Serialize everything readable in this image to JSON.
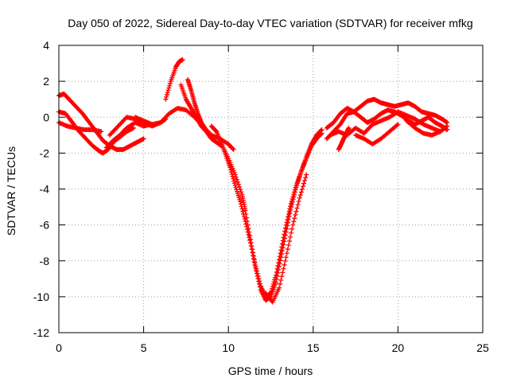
{
  "chart_data": {
    "type": "scatter",
    "title": "Day 050 of 2022, Sidereal Day-to-day VTEC variation (SDTVAR) for receiver mfkg",
    "xlabel": "GPS time / hours",
    "ylabel": "SDTVAR / TECUs",
    "xlim": [
      0,
      25
    ],
    "ylim": [
      -12,
      4
    ],
    "xticks": [
      0,
      5,
      10,
      15,
      20,
      25
    ],
    "yticks": [
      -12,
      -10,
      -8,
      -6,
      -4,
      -2,
      0,
      2,
      4
    ],
    "xtick_labels": [
      "0",
      "5",
      "10",
      "15",
      "20",
      "25"
    ],
    "ytick_labels": [
      "-12",
      "-10",
      "-8",
      "-6",
      "-4",
      "-2",
      "0",
      "2",
      "4"
    ],
    "grid": true,
    "marker": "+",
    "series": [
      {
        "name": "SDTVAR",
        "color": "#ff0000",
        "tracks": [
          {
            "x": [
              0.0,
              0.3,
              0.6,
              1.0,
              1.4,
              1.8,
              2.2,
              2.6,
              3.0,
              3.4,
              3.8,
              4.2,
              4.6,
              5.0
            ],
            "y": [
              1.2,
              1.3,
              1.0,
              0.6,
              0.2,
              -0.3,
              -0.8,
              -1.3,
              -1.6,
              -1.8,
              -1.8,
              -1.6,
              -1.4,
              -1.2
            ]
          },
          {
            "x": [
              0.0,
              0.4,
              0.8,
              1.2,
              1.6,
              2.0,
              2.4,
              2.6,
              2.9,
              3.2,
              3.6,
              4.0,
              4.4
            ],
            "y": [
              0.3,
              0.2,
              -0.3,
              -0.8,
              -1.2,
              -1.6,
              -1.9,
              -2.0,
              -1.8,
              -1.4,
              -1.1,
              -0.8,
              -0.6
            ]
          },
          {
            "x": [
              0.0,
              0.5,
              1.0,
              1.5,
              2.0,
              2.5
            ],
            "y": [
              -0.3,
              -0.5,
              -0.6,
              -0.7,
              -0.7,
              -0.8
            ]
          },
          {
            "x": [
              3.0,
              3.5,
              4.0,
              4.5,
              5.0,
              5.5,
              6.0,
              6.3
            ],
            "y": [
              -1.0,
              -0.5,
              0.0,
              -0.1,
              -0.3,
              -0.5,
              -0.3,
              -0.1
            ]
          },
          {
            "x": [
              2.8,
              3.2,
              3.6,
              4.0,
              4.5,
              5.0,
              5.4
            ],
            "y": [
              -1.7,
              -1.3,
              -1.0,
              -0.6,
              -0.3,
              -0.5,
              -0.4
            ]
          },
          {
            "x": [
              4.5,
              5.0,
              5.5,
              6.0,
              6.5,
              7.0,
              7.5,
              8.0,
              8.5,
              9.0,
              9.5,
              10.0,
              10.3
            ],
            "y": [
              0.0,
              -0.2,
              -0.4,
              -0.3,
              0.2,
              0.5,
              0.4,
              0.0,
              -0.5,
              -1.0,
              -1.2,
              -1.5,
              -1.8
            ]
          },
          {
            "x": [
              6.3,
              6.6,
              6.9,
              7.1,
              7.3
            ],
            "y": [
              1.0,
              2.0,
              2.8,
              3.1,
              3.2
            ]
          },
          {
            "x": [
              7.2,
              7.5,
              7.8,
              8.1,
              8.4,
              8.7,
              9.0,
              9.3,
              9.6
            ],
            "y": [
              1.8,
              1.0,
              0.5,
              0.0,
              -0.5,
              -0.8,
              -1.2,
              -1.4,
              -1.6
            ]
          },
          {
            "x": [
              7.6,
              7.8,
              8.0,
              8.2,
              8.4,
              8.6
            ],
            "y": [
              2.1,
              1.5,
              0.8,
              0.2,
              -0.3,
              -0.6
            ]
          },
          {
            "x": [
              9.0,
              9.3,
              9.6,
              10.0,
              10.4,
              10.8,
              11.0,
              11.3,
              11.6,
              11.9,
              12.2,
              12.5,
              12.8,
              13.1,
              13.4,
              13.7,
              14.0,
              14.3,
              14.6,
              14.9,
              15.2,
              15.5
            ],
            "y": [
              -0.5,
              -0.8,
              -1.5,
              -2.3,
              -3.2,
              -4.3,
              -5.2,
              -6.8,
              -8.3,
              -9.4,
              -10.0,
              -9.8,
              -8.8,
              -7.4,
              -6.0,
              -4.8,
              -3.8,
              -3.0,
              -2.2,
              -1.5,
              -1.0,
              -0.7
            ]
          },
          {
            "x": [
              9.5,
              9.8,
              10.1,
              10.4,
              10.7,
              11.0,
              11.3,
              11.6,
              11.9,
              12.2,
              12.5,
              12.8,
              13.1,
              13.4,
              13.7,
              14.0,
              14.3,
              14.6,
              14.9,
              15.2,
              15.5
            ],
            "y": [
              -1.2,
              -2.0,
              -2.8,
              -3.8,
              -4.7,
              -5.8,
              -7.0,
              -8.4,
              -9.6,
              -10.2,
              -10.0,
              -9.2,
              -7.8,
              -6.4,
              -5.0,
              -3.9,
              -3.0,
              -2.3,
              -1.6,
              -1.2,
              -0.9
            ]
          },
          {
            "x": [
              12.2,
              12.6,
              13.0,
              13.4,
              13.8,
              14.2,
              14.6
            ],
            "y": [
              -9.8,
              -10.3,
              -9.5,
              -7.8,
              -6.0,
              -4.5,
              -3.2
            ]
          },
          {
            "x": [
              15.8,
              16.2,
              16.6,
              17.0,
              17.4,
              17.8,
              18.2,
              18.6,
              19.0,
              19.4,
              19.8,
              20.2,
              20.6,
              21.0,
              21.4,
              21.8,
              22.2,
              22.6,
              22.9
            ],
            "y": [
              -1.2,
              -0.8,
              -0.4,
              0.2,
              0.3,
              0.6,
              0.9,
              1.0,
              0.8,
              0.7,
              0.6,
              0.7,
              0.8,
              0.6,
              0.3,
              0.2,
              0.1,
              -0.1,
              -0.3
            ]
          },
          {
            "x": [
              15.8,
              16.2,
              16.6,
              17.0,
              17.4,
              17.8,
              18.2,
              18.6,
              19.0,
              19.4,
              19.8,
              20.2,
              20.6,
              21.0,
              21.4,
              21.8,
              22.2,
              22.6,
              22.9
            ],
            "y": [
              -0.6,
              -0.3,
              0.2,
              0.5,
              0.3,
              0.0,
              -0.3,
              -0.1,
              0.2,
              0.4,
              0.3,
              0.1,
              -0.2,
              -0.4,
              -0.2,
              0.0,
              -0.3,
              -0.5,
              -0.7
            ]
          },
          {
            "x": [
              16.0,
              16.5,
              17.0,
              17.5,
              18.0,
              18.5,
              19.0,
              19.5,
              20.0,
              20.5,
              21.0,
              21.5,
              22.0,
              22.5,
              22.9
            ],
            "y": [
              -1.0,
              -0.8,
              -1.0,
              -0.6,
              -0.9,
              -0.4,
              -0.2,
              0.0,
              0.3,
              0.1,
              -0.1,
              -0.4,
              -0.6,
              -0.8,
              -0.5
            ]
          },
          {
            "x": [
              16.5,
              16.7,
              16.9,
              17.1
            ],
            "y": [
              -1.8,
              -1.4,
              -1.0,
              -0.6
            ]
          },
          {
            "x": [
              17.5,
              18.0,
              18.5,
              19.0,
              19.5,
              20.0
            ],
            "y": [
              -1.0,
              -1.2,
              -1.5,
              -1.2,
              -0.8,
              -0.4
            ]
          },
          {
            "x": [
              20.5,
              21.0,
              21.5,
              22.0,
              22.5
            ],
            "y": [
              -0.2,
              -0.6,
              -0.9,
              -1.0,
              -0.8
            ]
          }
        ]
      }
    ]
  }
}
